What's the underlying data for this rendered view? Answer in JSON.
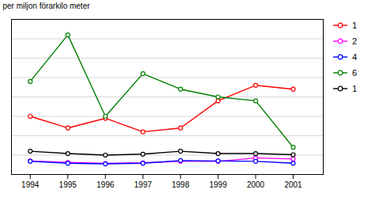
{
  "chart_data": {
    "type": "line",
    "ylabel": "per miljon förarkilo meter",
    "x": [
      1994,
      1995,
      1996,
      1997,
      1998,
      1999,
      2000,
      2001
    ],
    "series": [
      {
        "name": "1",
        "color": "#ff0000",
        "values": [
          0.3,
          0.24,
          0.29,
          0.22,
          0.24,
          0.38,
          0.46,
          0.44
        ]
      },
      {
        "name": "2",
        "color": "#ff00ff",
        "values": [
          0.07,
          0.062,
          0.057,
          0.06,
          0.068,
          0.068,
          0.085,
          0.08
        ]
      },
      {
        "name": "4",
        "color": "#0000ff",
        "values": [
          0.068,
          0.058,
          0.055,
          0.058,
          0.072,
          0.07,
          0.068,
          0.058
        ]
      },
      {
        "name": "6",
        "color": "#008000",
        "values": [
          0.48,
          0.72,
          0.3,
          0.52,
          0.44,
          0.4,
          0.38,
          0.14
        ]
      },
      {
        "name": "1",
        "color": "#000000",
        "values": [
          0.12,
          0.108,
          0.1,
          0.105,
          0.12,
          0.108,
          0.108,
          0.102
        ]
      }
    ],
    "xlim": [
      1993.5,
      2001.8
    ],
    "xticks": [
      1994,
      1995,
      1996,
      1997,
      1998,
      1999,
      2000,
      2001
    ],
    "ylim": [
      0,
      0.8
    ],
    "yticks": [
      0.0,
      0.1,
      0.2,
      0.3,
      0.4,
      0.5,
      0.6,
      0.7,
      0.8
    ],
    "grid": true,
    "tick_labels": "x",
    "legend": "right",
    "marker": "circle"
  }
}
